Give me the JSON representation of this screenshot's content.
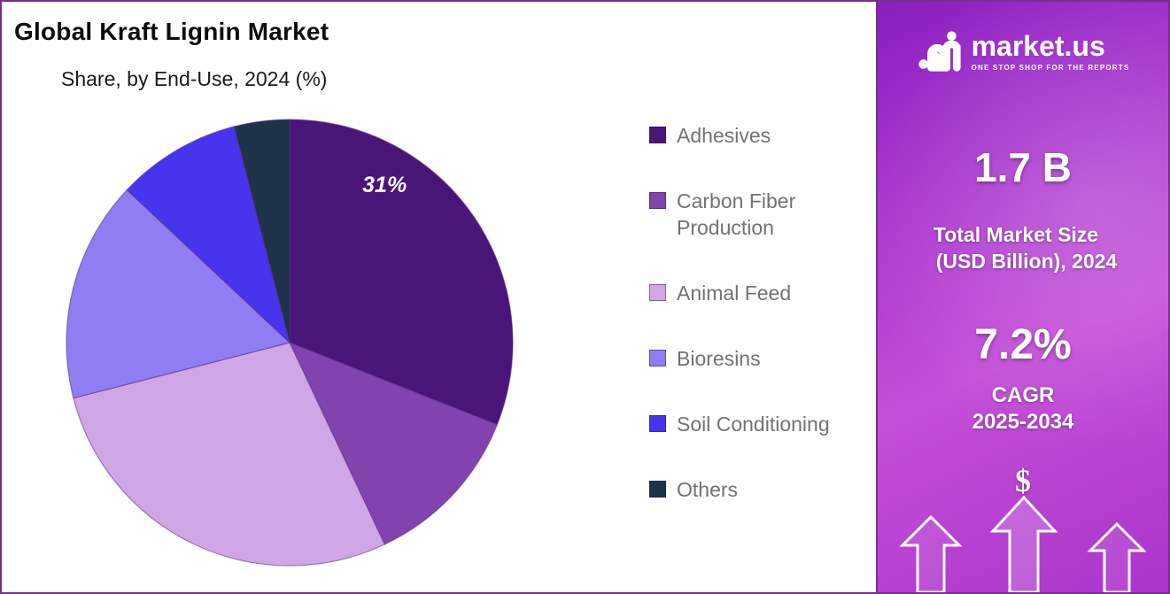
{
  "header": {
    "title": "Global Kraft Lignin Market",
    "subtitle": "Share, by End-Use, 2024 (%)"
  },
  "chart_data": {
    "type": "pie",
    "title": "Global Kraft Lignin Market",
    "subtitle": "Share, by End-Use, 2024 (%)",
    "unit": "%",
    "start_angle_deg": 0,
    "direction": "clockwise",
    "legend_position": "right",
    "slices": [
      {
        "name": "Adhesives",
        "value": 31,
        "color": "#4a1579",
        "label": "31%"
      },
      {
        "name": "Carbon Fiber Production",
        "value": 12,
        "color": "#8243ae",
        "label": ""
      },
      {
        "name": "Animal Feed",
        "value": 28,
        "color": "#cfa6e6",
        "label": ""
      },
      {
        "name": "Bioresins",
        "value": 16,
        "color": "#8f7df1",
        "label": ""
      },
      {
        "name": "Soil Conditioning",
        "value": 9,
        "color": "#4634ee",
        "label": ""
      },
      {
        "name": "Others",
        "value": 4,
        "color": "#1d3349",
        "label": ""
      }
    ],
    "label_color": "#ffffff"
  },
  "sidebar": {
    "logo": {
      "brand": "market.us",
      "tagline": "ONE STOP SHOP FOR THE REPORTS"
    },
    "stats": [
      {
        "value": "1.7 B",
        "caption_lines": [
          "Total Market Size",
          "(USD Billion), 2024"
        ]
      },
      {
        "value": "7.2%",
        "caption_lines": [
          "CAGR",
          "2025-2034"
        ]
      }
    ],
    "dollar_symbol": "$",
    "gradient": [
      "#8a1fc0",
      "#c44fd8"
    ],
    "border_color": "#7b2d8e"
  }
}
